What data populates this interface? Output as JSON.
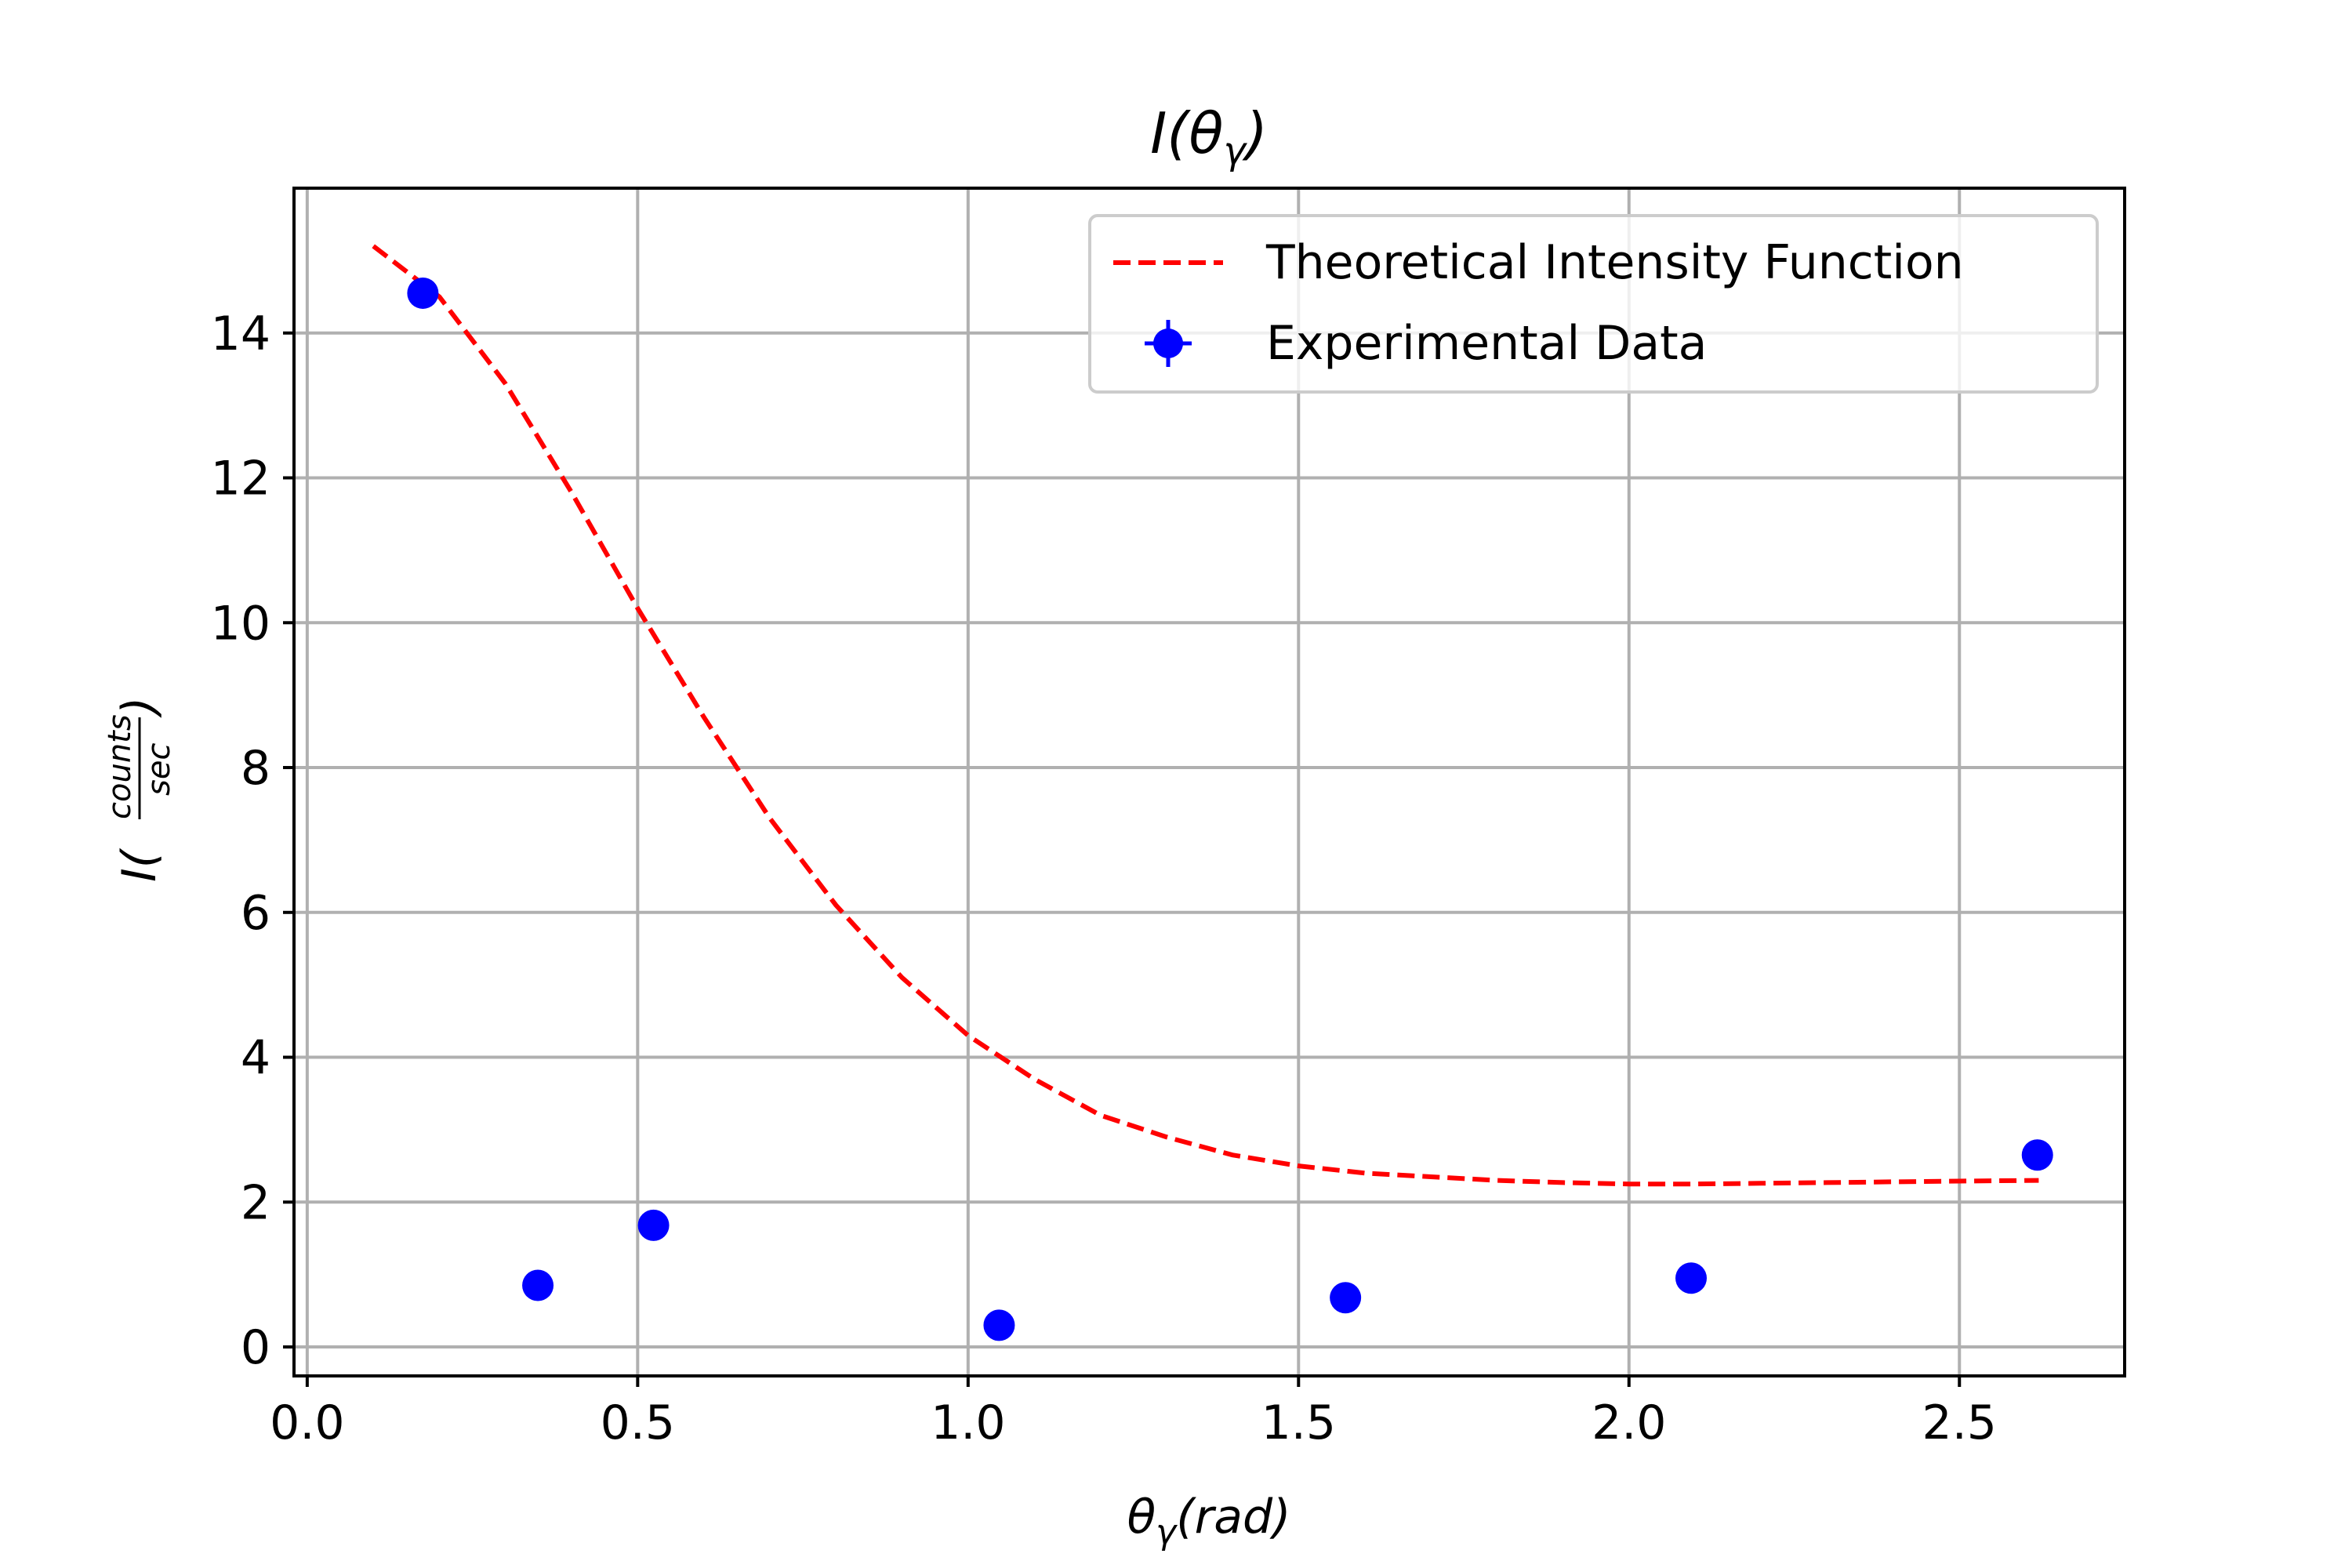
{
  "chart_data": {
    "type": "scatter",
    "title": "I(θ",
    "title_sub": "γ",
    "title_close": ")",
    "xlabel": "θ",
    "xlabel_sub": "γ",
    "xlabel_rest": "(rad)",
    "ylabel_main": "I(",
    "ylabel_num": "counts",
    "ylabel_den": "sec",
    "ylabel_close": ")",
    "xlim": [
      -0.02,
      2.75
    ],
    "ylim": [
      -0.4,
      16.0
    ],
    "xticks": [
      0.0,
      0.5,
      1.0,
      1.5,
      2.0,
      2.5
    ],
    "xtick_labels": [
      "0.0",
      "0.5",
      "1.0",
      "1.5",
      "2.0",
      "2.5"
    ],
    "yticks": [
      0,
      2,
      4,
      6,
      8,
      10,
      12,
      14
    ],
    "ytick_labels": [
      "0",
      "2",
      "4",
      "6",
      "8",
      "10",
      "12",
      "14"
    ],
    "grid": true,
    "legend_position": "top-right",
    "series": [
      {
        "name": "Theoretical Intensity Function",
        "kind": "line",
        "style": "dashed",
        "color": "#ff0000",
        "x": [
          0.1,
          0.2,
          0.3,
          0.4,
          0.5,
          0.6,
          0.7,
          0.8,
          0.9,
          1.0,
          1.1,
          1.2,
          1.3,
          1.4,
          1.5,
          1.6,
          1.7,
          1.8,
          1.9,
          2.0,
          2.1,
          2.2,
          2.3,
          2.4,
          2.5,
          2.62
        ],
        "y": [
          15.2,
          14.5,
          13.3,
          11.8,
          10.2,
          8.7,
          7.3,
          6.1,
          5.1,
          4.3,
          3.7,
          3.2,
          2.9,
          2.65,
          2.5,
          2.4,
          2.35,
          2.3,
          2.27,
          2.25,
          2.25,
          2.26,
          2.27,
          2.28,
          2.29,
          2.3
        ]
      },
      {
        "name": "Experimental Data",
        "kind": "scatter",
        "color": "#0000ff",
        "x": [
          0.175,
          0.349,
          0.524,
          1.047,
          1.571,
          2.094,
          2.618
        ],
        "y": [
          14.55,
          0.85,
          1.68,
          0.3,
          0.68,
          0.95,
          2.65
        ]
      }
    ]
  }
}
